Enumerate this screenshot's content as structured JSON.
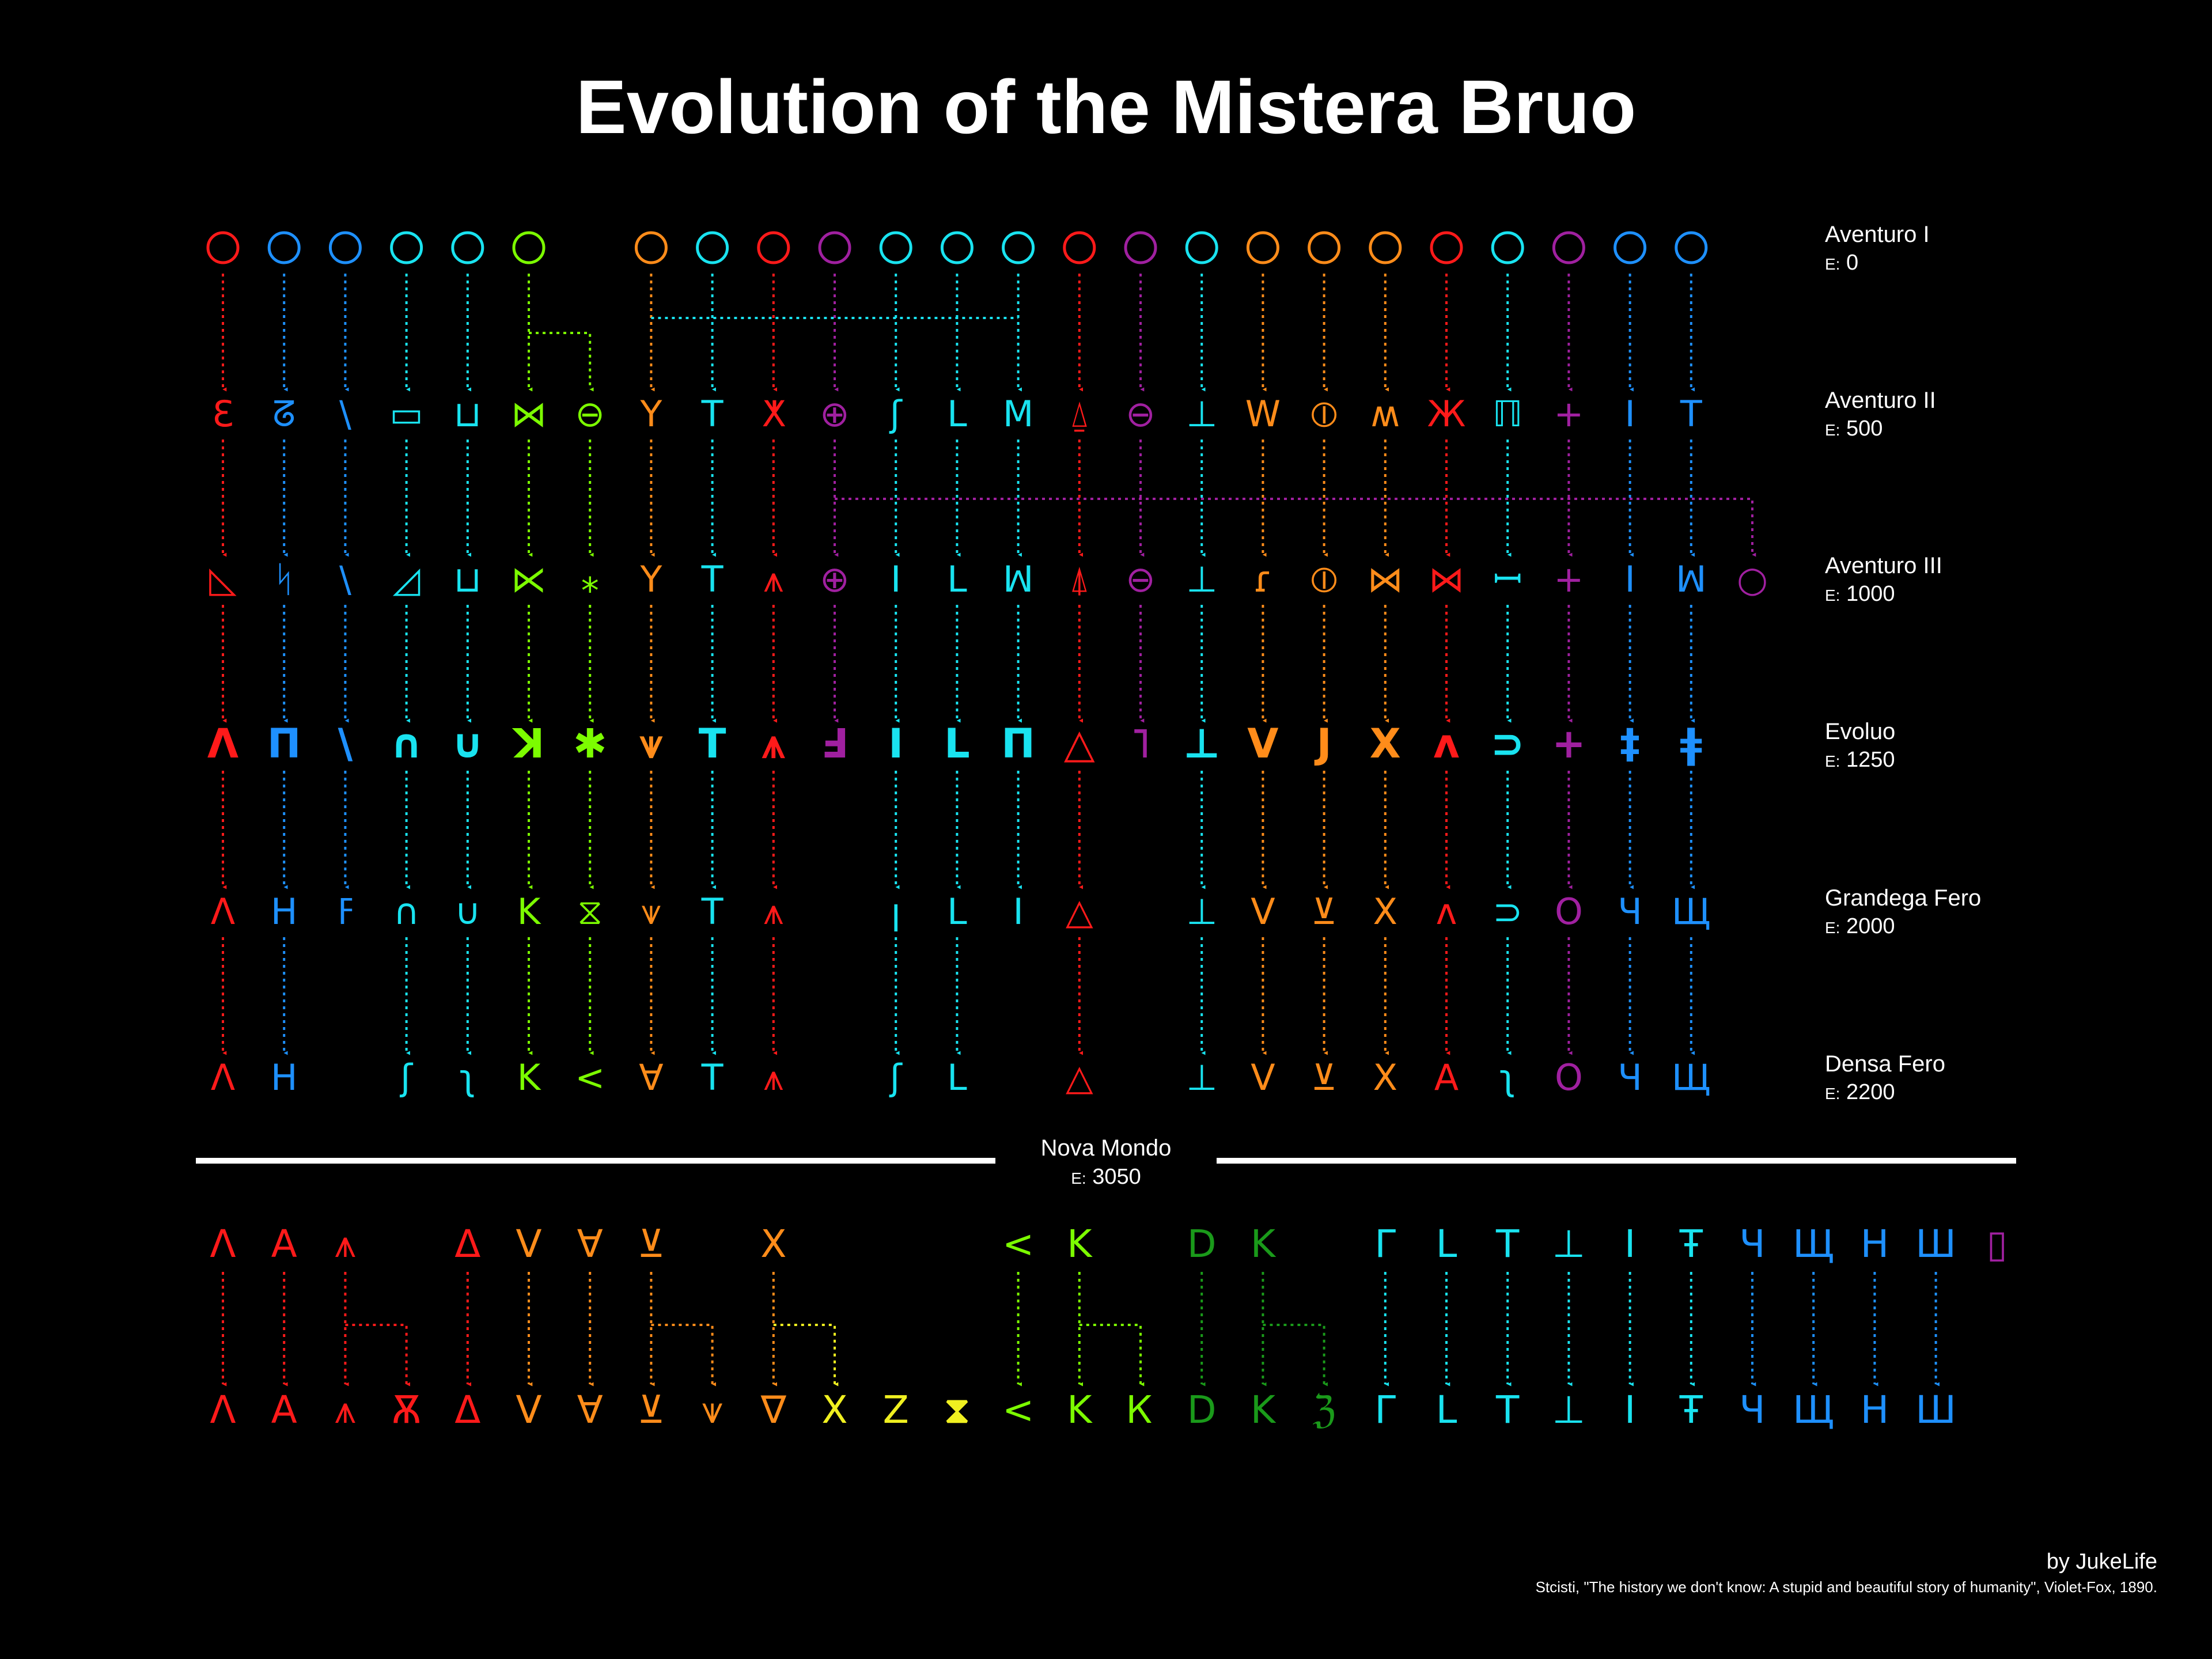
{
  "title": "Evolution of the Mistera Bruo",
  "eras": [
    {
      "name": "Aventuro I",
      "e_label": "E:",
      "year": "0"
    },
    {
      "name": "Aventuro II",
      "e_label": "E:",
      "year": "500"
    },
    {
      "name": "Aventuro III",
      "e_label": "E:",
      "year": "1000"
    },
    {
      "name": "Evoluo",
      "e_label": "E:",
      "year": "1250"
    },
    {
      "name": "Grandega Fero",
      "e_label": "E:",
      "year": "2000"
    },
    {
      "name": "Densa Fero",
      "e_label": "E:",
      "year": "2200"
    }
  ],
  "divider": {
    "name": "Nova Mondo",
    "e_label": "E:",
    "year": "3050"
  },
  "colors": {
    "red": "#ff1a1a",
    "blue": "#1e90ff",
    "cyan": "#19e3f0",
    "lime": "#7cfc00",
    "orange": "#ff8c1a",
    "purple": "#a020a0",
    "yellow": "#f0f020",
    "green": "#1a9a1a"
  },
  "columns": [
    {
      "color": "red",
      "glyphs": [
        "pictograph",
        "Ɛ",
        "◺",
        "Λ",
        "Λ",
        "Λ"
      ]
    },
    {
      "color": "blue",
      "glyphs": [
        "pictograph",
        "ᘔ",
        "ᛋ",
        "Π",
        "H",
        "H"
      ]
    },
    {
      "color": "blue",
      "glyphs": [
        "pictograph",
        "\\",
        "\\",
        "\\",
        "ߓ",
        ""
      ]
    },
    {
      "color": "cyan",
      "glyphs": [
        "pictograph",
        "▭",
        "◿",
        "∩",
        "∩",
        "ʃ"
      ]
    },
    {
      "color": "cyan",
      "glyphs": [
        "pictograph",
        "⊔",
        "⊔",
        "∪",
        "∪",
        "ʅ"
      ]
    },
    {
      "color": "lime",
      "glyphs": [
        "pictograph",
        "⋈",
        "⋉",
        "ꓘ",
        "K",
        "K"
      ]
    },
    {
      "color": "lime",
      "glyphs": [
        "",
        "⊖",
        "⁎",
        "✱",
        "⧖",
        "<"
      ]
    },
    {
      "color": "orange",
      "glyphs": [
        "pictograph",
        "Y",
        "Y",
        "⩛",
        "⩛",
        "∀"
      ]
    },
    {
      "color": "cyan",
      "glyphs": [
        "pictograph",
        "T",
        "T",
        "T",
        "T",
        "T"
      ]
    },
    {
      "color": "red",
      "glyphs": [
        "pictograph",
        "ⵅ",
        "⩚",
        "⩚",
        "⩚",
        "⩚"
      ]
    },
    {
      "color": "purple",
      "glyphs": [
        "pictograph",
        "⊕",
        "⊕",
        "Ⅎ",
        "",
        ""
      ]
    },
    {
      "color": "cyan",
      "glyphs": [
        "pictograph",
        "ʃ",
        "I",
        "I",
        "ꞁ",
        "ʃ"
      ]
    },
    {
      "color": "cyan",
      "glyphs": [
        "pictograph",
        "L",
        "L",
        "L",
        "L",
        "L"
      ]
    },
    {
      "color": "cyan",
      "glyphs": [
        "pictograph",
        "M",
        "ꟽ",
        "Π",
        "I",
        ""
      ]
    },
    {
      "color": "red",
      "glyphs": [
        "pictograph",
        "⍙",
        "⍋",
        "△",
        "△",
        "△"
      ]
    },
    {
      "color": "purple",
      "glyphs": [
        "pictograph",
        "⊖",
        "⊖",
        "˥",
        "",
        ""
      ]
    },
    {
      "color": "cyan",
      "glyphs": [
        "pictograph",
        "⊥",
        "⊥",
        "⊥",
        "⊥",
        "⊥"
      ]
    },
    {
      "color": "orange",
      "glyphs": [
        "pictograph",
        "W",
        "ɾ",
        "V",
        "V",
        "V"
      ]
    },
    {
      "color": "orange",
      "glyphs": [
        "pictograph",
        "⦶",
        "⦶",
        "J",
        "⊻",
        "⊻"
      ]
    },
    {
      "color": "orange",
      "glyphs": [
        "pictograph",
        "ʍ",
        "⋈",
        "X",
        "X",
        "X"
      ]
    },
    {
      "color": "red",
      "glyphs": [
        "pictograph",
        "Ж",
        "⋈",
        "ʌ",
        "ʌ",
        "A"
      ]
    },
    {
      "color": "cyan",
      "glyphs": [
        "pictograph",
        "ℿ",
        "ꟷ",
        "⊃",
        "⊃",
        "ʅ"
      ]
    },
    {
      "color": "purple",
      "glyphs": [
        "pictograph",
        "+",
        "+",
        "+",
        "O",
        "O"
      ]
    },
    {
      "color": "blue",
      "glyphs": [
        "pictograph",
        "I",
        "I",
        "‡",
        "Ч",
        "Ч"
      ]
    },
    {
      "color": "blue",
      "glyphs": [
        "pictograph",
        "T",
        "ꟽ",
        "ǂ",
        "Щ",
        "Щ"
      ]
    },
    {
      "color": "purple",
      "glyphs": [
        "",
        "",
        "○",
        "",
        "",
        ""
      ]
    }
  ],
  "bottom_top": [
    {
      "glyph": "Λ",
      "color": "red"
    },
    {
      "glyph": "A",
      "color": "red"
    },
    {
      "glyph": "⩚",
      "color": "red"
    },
    {
      "glyph": "",
      "color": "red"
    },
    {
      "glyph": "Δ",
      "color": "red"
    },
    {
      "glyph": "V",
      "color": "orange"
    },
    {
      "glyph": "∀",
      "color": "orange"
    },
    {
      "glyph": "⊻",
      "color": "orange"
    },
    {
      "glyph": "",
      "color": "orange"
    },
    {
      "glyph": "X",
      "color": "orange"
    },
    {
      "glyph": "",
      "color": "yellow"
    },
    {
      "glyph": "",
      "color": "yellow"
    },
    {
      "glyph": "",
      "color": "yellow"
    },
    {
      "glyph": "<",
      "color": "lime"
    },
    {
      "glyph": "K",
      "color": "lime"
    },
    {
      "glyph": "",
      "color": "lime"
    },
    {
      "glyph": "D",
      "color": "green"
    },
    {
      "glyph": "K",
      "color": "green"
    },
    {
      "glyph": "",
      "color": "green"
    },
    {
      "glyph": "Γ",
      "color": "cyan"
    },
    {
      "glyph": "L",
      "color": "cyan"
    },
    {
      "glyph": "T",
      "color": "cyan"
    },
    {
      "glyph": "⊥",
      "color": "cyan"
    },
    {
      "glyph": "I",
      "color": "cyan"
    },
    {
      "glyph": "Ŧ",
      "color": "cyan"
    },
    {
      "glyph": "Ч",
      "color": "blue"
    },
    {
      "glyph": "Щ",
      "color": "blue"
    },
    {
      "glyph": "H",
      "color": "blue"
    },
    {
      "glyph": "Ш",
      "color": "blue"
    },
    {
      "glyph": "▯",
      "color": "purple"
    }
  ],
  "bottom_bottom": [
    {
      "glyph": "Λ",
      "color": "red"
    },
    {
      "glyph": "A",
      "color": "red"
    },
    {
      "glyph": "⩚",
      "color": "red"
    },
    {
      "glyph": "Ѫ",
      "color": "red"
    },
    {
      "glyph": "Δ",
      "color": "red"
    },
    {
      "glyph": "V",
      "color": "orange"
    },
    {
      "glyph": "∀",
      "color": "orange"
    },
    {
      "glyph": "⊻",
      "color": "orange"
    },
    {
      "glyph": "⩛",
      "color": "orange"
    },
    {
      "glyph": "∇",
      "color": "orange"
    },
    {
      "glyph": "X",
      "color": "yellow"
    },
    {
      "glyph": "Z",
      "color": "yellow"
    },
    {
      "glyph": "⧗",
      "color": "yellow"
    },
    {
      "glyph": "<",
      "color": "lime"
    },
    {
      "glyph": "K",
      "color": "lime"
    },
    {
      "glyph": "Ꮶ",
      "color": "lime"
    },
    {
      "glyph": "D",
      "color": "green"
    },
    {
      "glyph": "K",
      "color": "green"
    },
    {
      "glyph": "ℨ",
      "color": "green"
    },
    {
      "glyph": "Γ",
      "color": "cyan"
    },
    {
      "glyph": "L",
      "color": "cyan"
    },
    {
      "glyph": "T",
      "color": "cyan"
    },
    {
      "glyph": "⊥",
      "color": "cyan"
    },
    {
      "glyph": "I",
      "color": "cyan"
    },
    {
      "glyph": "Ŧ",
      "color": "cyan"
    },
    {
      "glyph": "Ч",
      "color": "blue"
    },
    {
      "glyph": "Щ",
      "color": "blue"
    },
    {
      "glyph": "H",
      "color": "blue"
    },
    {
      "glyph": "Ш",
      "color": "blue"
    },
    {
      "glyph": "",
      "color": "purple"
    }
  ],
  "credit": {
    "by": "by JukeLife",
    "source": "Stcisti, \"The history we don't know: A stupid and beautiful story of humanity\", Violet-Fox, 1890."
  }
}
